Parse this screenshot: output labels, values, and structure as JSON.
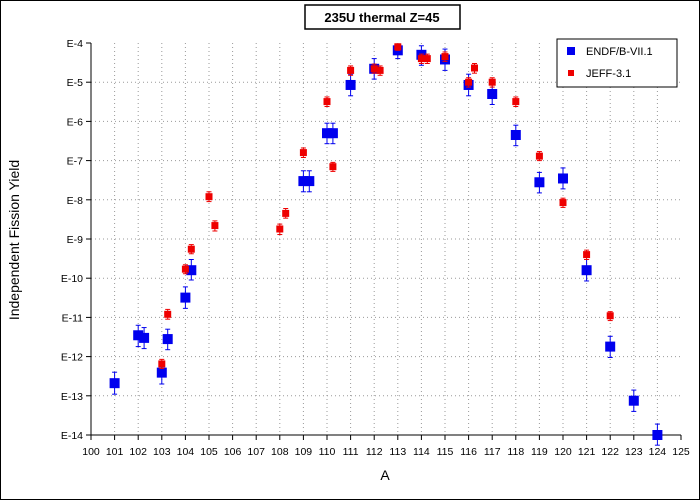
{
  "chart_data": {
    "type": "scatter",
    "title": "235U thermal Z=45",
    "xlabel": "A",
    "ylabel": "Independent Fission Yield",
    "xlim": [
      100,
      125
    ],
    "ylim": [
      1e-14,
      0.0001
    ],
    "y_scale": "log",
    "grid": true,
    "legend_position": "top-right",
    "x_ticks": [
      "100",
      "101",
      "102",
      "103",
      "104",
      "105",
      "106",
      "107",
      "108",
      "109",
      "110",
      "111",
      "112",
      "113",
      "114",
      "115",
      "116",
      "117",
      "118",
      "119",
      "120",
      "121",
      "122",
      "123",
      "124",
      "125"
    ],
    "y_ticks": [
      {
        "value": 0.0001,
        "label": "E-4"
      },
      {
        "value": 1e-05,
        "label": "E-5"
      },
      {
        "value": 1e-06,
        "label": "E-6"
      },
      {
        "value": 1e-07,
        "label": "E-7"
      },
      {
        "value": 1e-08,
        "label": "E-8"
      },
      {
        "value": 1e-09,
        "label": "E-9"
      },
      {
        "value": 1e-10,
        "label": "E-10"
      },
      {
        "value": 1e-11,
        "label": "E-11"
      },
      {
        "value": 1e-12,
        "label": "E-12"
      },
      {
        "value": 1e-13,
        "label": "E-13"
      },
      {
        "value": 1e-14,
        "label": "E-14"
      }
    ],
    "series": [
      {
        "name": "ENDF/B-VII.1",
        "color": "#0000ee",
        "marker": "square-large",
        "points": [
          {
            "x": 101,
            "y": 2.1e-13,
            "ylo": 1.1e-13,
            "yhi": 4e-13
          },
          {
            "x": 102,
            "y": 3.5e-12,
            "ylo": 1.8e-12,
            "yhi": 6.3e-12
          },
          {
            "x": 102.25,
            "y": 3e-12,
            "ylo": 1.6e-12,
            "yhi": 5.5e-12
          },
          {
            "x": 103,
            "y": 3.9e-13,
            "ylo": 2e-13,
            "yhi": 7e-13
          },
          {
            "x": 103.25,
            "y": 2.8e-12,
            "ylo": 1.5e-12,
            "yhi": 5e-12
          },
          {
            "x": 104,
            "y": 3.2e-11,
            "ylo": 1.7e-11,
            "yhi": 6e-11
          },
          {
            "x": 104.25,
            "y": 1.6e-10,
            "ylo": 9e-11,
            "yhi": 3e-10
          },
          {
            "x": 109,
            "y": 3e-08,
            "ylo": 1.6e-08,
            "yhi": 5.5e-08
          },
          {
            "x": 109.25,
            "y": 3e-08,
            "ylo": 1.6e-08,
            "yhi": 5.5e-08
          },
          {
            "x": 110,
            "y": 5e-07,
            "ylo": 2.7e-07,
            "yhi": 9e-07
          },
          {
            "x": 110.25,
            "y": 5e-07,
            "ylo": 2.7e-07,
            "yhi": 9e-07
          },
          {
            "x": 111,
            "y": 8.5e-06,
            "ylo": 4.5e-06,
            "yhi": 1.6e-05
          },
          {
            "x": 112,
            "y": 2.2e-05,
            "ylo": 1.2e-05,
            "yhi": 4e-05
          },
          {
            "x": 113,
            "y": 6.5e-05,
            "ylo": 4e-05,
            "yhi": 8.5e-05
          },
          {
            "x": 114,
            "y": 5e-05,
            "ylo": 2.7e-05,
            "yhi": 8.5e-05
          },
          {
            "x": 115,
            "y": 3.8e-05,
            "ylo": 2e-05,
            "yhi": 7e-05
          },
          {
            "x": 116,
            "y": 8.5e-06,
            "ylo": 4.5e-06,
            "yhi": 1.6e-05
          },
          {
            "x": 117,
            "y": 5e-06,
            "ylo": 2.7e-06,
            "yhi": 9e-06
          },
          {
            "x": 118,
            "y": 4.5e-07,
            "ylo": 2.4e-07,
            "yhi": 8e-07
          },
          {
            "x": 119,
            "y": 2.8e-08,
            "ylo": 1.5e-08,
            "yhi": 5e-08
          },
          {
            "x": 120,
            "y": 3.5e-08,
            "ylo": 1.9e-08,
            "yhi": 6.5e-08
          },
          {
            "x": 121,
            "y": 1.6e-10,
            "ylo": 8.5e-11,
            "yhi": 3e-10
          },
          {
            "x": 122,
            "y": 1.8e-12,
            "ylo": 9.5e-13,
            "yhi": 3.3e-12
          },
          {
            "x": 123,
            "y": 7.5e-14,
            "ylo": 4e-14,
            "yhi": 1.4e-13
          },
          {
            "x": 124,
            "y": 1e-14,
            "ylo": 5.5e-15,
            "yhi": 1.9e-14
          }
        ]
      },
      {
        "name": "JEFF-3.1",
        "color": "#ee0000",
        "marker": "square-small",
        "points": [
          {
            "x": 103,
            "y": 6.5e-13,
            "ylo": 5e-13,
            "yhi": 8.5e-13
          },
          {
            "x": 103.25,
            "y": 1.2e-11,
            "ylo": 9e-12,
            "yhi": 1.6e-11
          },
          {
            "x": 104,
            "y": 1.7e-10,
            "ylo": 1.3e-10,
            "yhi": 2.2e-10
          },
          {
            "x": 104.25,
            "y": 5.5e-10,
            "ylo": 4.2e-10,
            "yhi": 7.2e-10
          },
          {
            "x": 105,
            "y": 1.2e-08,
            "ylo": 9e-09,
            "yhi": 1.6e-08
          },
          {
            "x": 105.25,
            "y": 2.2e-09,
            "ylo": 1.6e-09,
            "yhi": 2.9e-09
          },
          {
            "x": 108,
            "y": 1.8e-09,
            "ylo": 1.3e-09,
            "yhi": 2.4e-09
          },
          {
            "x": 108.25,
            "y": 4.5e-09,
            "ylo": 3.4e-09,
            "yhi": 6e-09
          },
          {
            "x": 109,
            "y": 1.6e-07,
            "ylo": 1.2e-07,
            "yhi": 2.1e-07
          },
          {
            "x": 110,
            "y": 3.2e-06,
            "ylo": 2.4e-06,
            "yhi": 4.2e-06
          },
          {
            "x": 110.25,
            "y": 7e-08,
            "ylo": 5.3e-08,
            "yhi": 9e-08
          },
          {
            "x": 111,
            "y": 2e-05,
            "ylo": 1.5e-05,
            "yhi": 2.6e-05
          },
          {
            "x": 112,
            "y": 2.2e-05,
            "ylo": 1.7e-05,
            "yhi": 2.9e-05
          },
          {
            "x": 112.25,
            "y": 2e-05,
            "ylo": 1.5e-05,
            "yhi": 2.6e-05
          },
          {
            "x": 113,
            "y": 8e-05,
            "ylo": 6.5e-05,
            "yhi": 9.5e-05
          },
          {
            "x": 114,
            "y": 4e-05,
            "ylo": 3e-05,
            "yhi": 5.2e-05
          },
          {
            "x": 114.25,
            "y": 4e-05,
            "ylo": 3e-05,
            "yhi": 5.2e-05
          },
          {
            "x": 115,
            "y": 4.5e-05,
            "ylo": 3.4e-05,
            "yhi": 5.9e-05
          },
          {
            "x": 116,
            "y": 1e-05,
            "ylo": 7.5e-06,
            "yhi": 1.3e-05
          },
          {
            "x": 116.25,
            "y": 2.3e-05,
            "ylo": 1.7e-05,
            "yhi": 3e-05
          },
          {
            "x": 117,
            "y": 1e-05,
            "ylo": 7.5e-06,
            "yhi": 1.3e-05
          },
          {
            "x": 118,
            "y": 3.2e-06,
            "ylo": 2.4e-06,
            "yhi": 4.2e-06
          },
          {
            "x": 119,
            "y": 1.3e-07,
            "ylo": 1e-07,
            "yhi": 1.7e-07
          },
          {
            "x": 120,
            "y": 8.5e-09,
            "ylo": 6.4e-09,
            "yhi": 1.1e-08
          },
          {
            "x": 121,
            "y": 4e-10,
            "ylo": 3e-10,
            "yhi": 5.2e-10
          },
          {
            "x": 122,
            "y": 1.1e-11,
            "ylo": 8.3e-12,
            "yhi": 1.4e-11
          }
        ]
      }
    ]
  }
}
